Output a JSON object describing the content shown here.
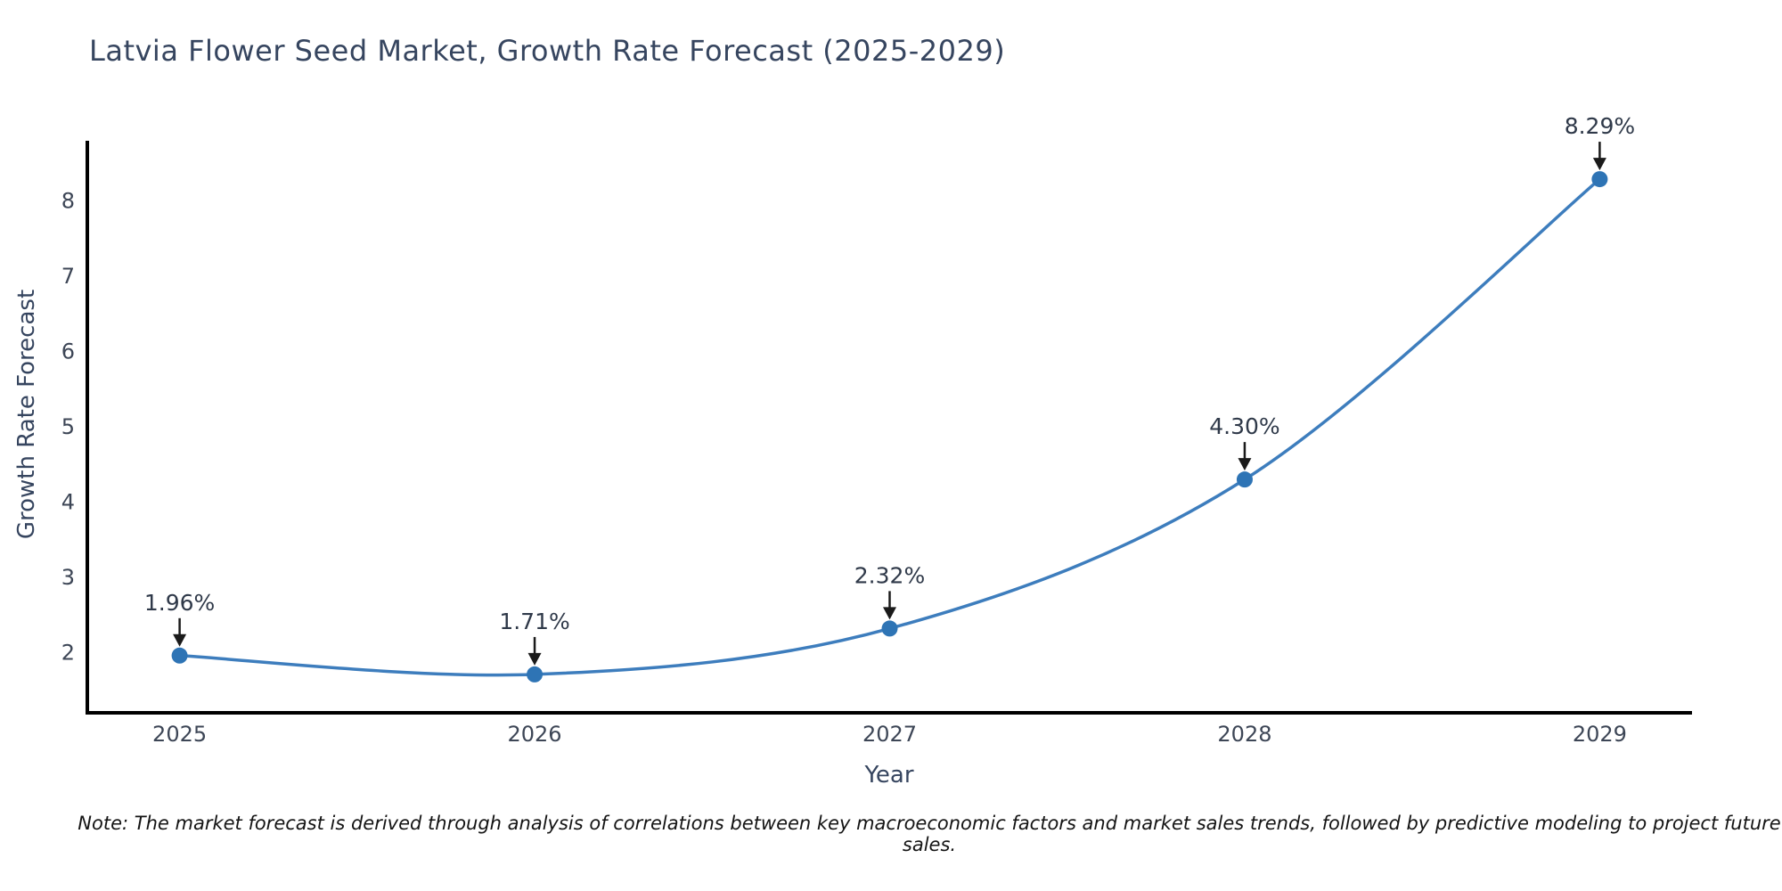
{
  "title": "Latvia Flower Seed Market, Growth Rate Forecast (2025-2029)",
  "note": "Note: The market forecast is derived through analysis of correlations between key macroeconomic factors and market sales trends, followed by predictive modeling to project future sales.",
  "chart_data": {
    "type": "line",
    "title": "Latvia Flower Seed Market, Growth Rate Forecast (2025-2029)",
    "xlabel": "Year",
    "ylabel": "Growth Rate Forecast",
    "categories": [
      2025,
      2026,
      2027,
      2028,
      2029
    ],
    "values": [
      1.96,
      1.71,
      2.32,
      4.3,
      8.29
    ],
    "point_labels": [
      "1.96%",
      "1.71%",
      "2.32%",
      "4.30%",
      "8.29%"
    ],
    "yticks": [
      2,
      3,
      4,
      5,
      6,
      7,
      8
    ],
    "ylim": [
      1.2,
      8.8
    ],
    "xlim": [
      2024.74,
      2029.26
    ],
    "grid": false,
    "legend": false,
    "smooth_curve": true,
    "annotations_arrow": true,
    "colors": {
      "line": "#3d7dbd",
      "marker": "#2e74b5",
      "axis": "#000000",
      "title_text": "#36455f",
      "tick_text": "#3d4656",
      "annotation_text": "#2f3949",
      "note_text": "#141414",
      "background": "#ffffff"
    }
  }
}
